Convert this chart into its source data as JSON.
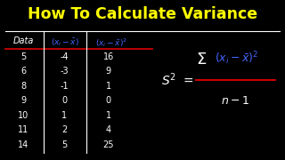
{
  "title": "How To Calculate Variance",
  "title_color": "#FFFF00",
  "bg_color": "#000000",
  "table_header_color": "#4466FF",
  "table_line_color": "#CC0000",
  "white": "#FFFFFF",
  "data_col": [
    "Data",
    "5",
    "6",
    "8",
    "9",
    "10",
    "11",
    "14"
  ],
  "diff_col": [
    "-4",
    "-3",
    "-1",
    "0",
    "1",
    "2",
    "5"
  ],
  "sq_col": [
    "16",
    "9",
    "1",
    "0",
    "1",
    "4",
    "25"
  ]
}
